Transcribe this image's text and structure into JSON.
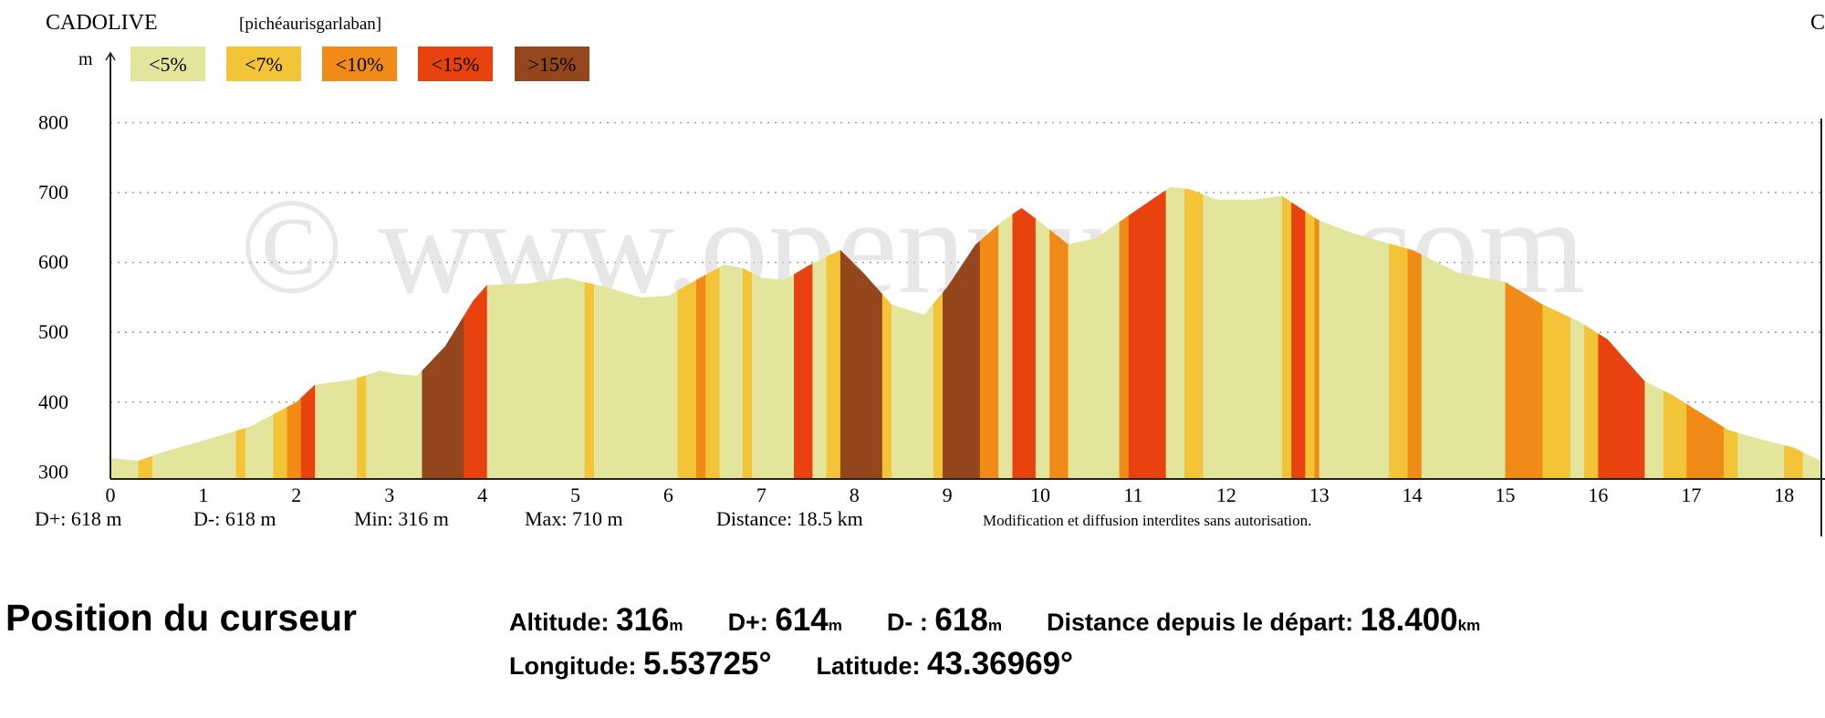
{
  "header": {
    "start_label": "CADOLIVE",
    "route_label": "[pichéaurisgarlaban]",
    "end_label": "C"
  },
  "legend": [
    {
      "label": "<5%",
      "color": "#E3E59C"
    },
    {
      "label": "<7%",
      "color": "#F3C338"
    },
    {
      "label": "<10%",
      "color": "#F18B18"
    },
    {
      "label": "<15%",
      "color": "#E8420F"
    },
    {
      "label": ">15%",
      "color": "#94461D"
    }
  ],
  "stats": {
    "dplus": "D+: 618 m",
    "dminus": "D-: 618 m",
    "min": "Min: 316 m",
    "max": "Max: 710 m",
    "distance": "Distance: 18.5 km",
    "notice": "Modification et diffusion interdites sans autorisation."
  },
  "watermark": "© www.openrunner.com",
  "chart_data": {
    "type": "area",
    "xlabel": "",
    "ylabel": "m",
    "xlim": [
      0,
      18.4
    ],
    "ylim": [
      290,
      900
    ],
    "x_ticks": [
      0,
      1,
      2,
      3,
      4,
      5,
      6,
      7,
      8,
      9,
      10,
      11,
      12,
      13,
      14,
      15,
      16,
      17,
      18
    ],
    "y_ticks": [
      300,
      400,
      500,
      600,
      700,
      800
    ],
    "grid": true,
    "profile": [
      [
        0,
        320
      ],
      [
        0.3,
        316
      ],
      [
        0.6,
        330
      ],
      [
        1.0,
        345
      ],
      [
        1.5,
        365
      ],
      [
        2.0,
        400
      ],
      [
        2.2,
        425
      ],
      [
        2.6,
        432
      ],
      [
        2.9,
        445
      ],
      [
        3.1,
        440
      ],
      [
        3.3,
        438
      ],
      [
        3.6,
        480
      ],
      [
        3.9,
        545
      ],
      [
        4.05,
        568
      ],
      [
        4.5,
        570
      ],
      [
        4.9,
        578
      ],
      [
        5.3,
        566
      ],
      [
        5.7,
        550
      ],
      [
        6.0,
        552
      ],
      [
        6.3,
        575
      ],
      [
        6.6,
        597
      ],
      [
        6.8,
        592
      ],
      [
        7.0,
        578
      ],
      [
        7.25,
        575
      ],
      [
        7.5,
        595
      ],
      [
        7.85,
        618
      ],
      [
        8.1,
        585
      ],
      [
        8.4,
        540
      ],
      [
        8.75,
        525
      ],
      [
        9.0,
        565
      ],
      [
        9.3,
        625
      ],
      [
        9.6,
        660
      ],
      [
        9.8,
        678
      ],
      [
        10.0,
        658
      ],
      [
        10.3,
        626
      ],
      [
        10.6,
        635
      ],
      [
        11.0,
        672
      ],
      [
        11.4,
        708
      ],
      [
        11.6,
        705
      ],
      [
        11.9,
        690
      ],
      [
        12.3,
        690
      ],
      [
        12.6,
        695
      ],
      [
        13.0,
        660
      ],
      [
        13.4,
        640
      ],
      [
        14.0,
        618
      ],
      [
        14.5,
        585
      ],
      [
        15.0,
        572
      ],
      [
        15.4,
        540
      ],
      [
        15.8,
        515
      ],
      [
        16.1,
        490
      ],
      [
        16.5,
        430
      ],
      [
        16.8,
        410
      ],
      [
        17.1,
        385
      ],
      [
        17.4,
        360
      ],
      [
        17.8,
        345
      ],
      [
        18.1,
        335
      ],
      [
        18.3,
        322
      ],
      [
        18.4,
        316
      ]
    ],
    "slope_bands": [
      [
        0,
        0.3,
        0
      ],
      [
        0.3,
        0.45,
        1
      ],
      [
        0.45,
        1.35,
        0
      ],
      [
        1.35,
        1.45,
        1
      ],
      [
        1.45,
        1.75,
        0
      ],
      [
        1.75,
        1.9,
        1
      ],
      [
        1.9,
        2.05,
        2
      ],
      [
        2.05,
        2.2,
        3
      ],
      [
        2.2,
        2.65,
        0
      ],
      [
        2.65,
        2.75,
        1
      ],
      [
        2.75,
        3.35,
        0
      ],
      [
        3.35,
        3.8,
        4
      ],
      [
        3.8,
        4.05,
        3
      ],
      [
        4.05,
        5.1,
        0
      ],
      [
        5.1,
        5.2,
        1
      ],
      [
        5.2,
        6.1,
        0
      ],
      [
        6.1,
        6.3,
        1
      ],
      [
        6.3,
        6.4,
        2
      ],
      [
        6.4,
        6.55,
        1
      ],
      [
        6.55,
        6.8,
        0
      ],
      [
        6.8,
        6.9,
        1
      ],
      [
        6.9,
        7.35,
        0
      ],
      [
        7.35,
        7.55,
        3
      ],
      [
        7.55,
        7.7,
        0
      ],
      [
        7.7,
        7.85,
        1
      ],
      [
        7.85,
        8.3,
        4
      ],
      [
        8.3,
        8.4,
        1
      ],
      [
        8.4,
        8.85,
        0
      ],
      [
        8.85,
        8.95,
        1
      ],
      [
        8.95,
        9.35,
        4
      ],
      [
        9.35,
        9.55,
        2
      ],
      [
        9.55,
        9.7,
        0
      ],
      [
        9.7,
        9.95,
        3
      ],
      [
        9.95,
        10.1,
        0
      ],
      [
        10.1,
        10.3,
        2
      ],
      [
        10.3,
        10.85,
        0
      ],
      [
        10.85,
        10.95,
        2
      ],
      [
        10.95,
        11.35,
        3
      ],
      [
        11.35,
        11.55,
        0
      ],
      [
        11.55,
        11.75,
        1
      ],
      [
        11.75,
        12.6,
        0
      ],
      [
        12.6,
        12.7,
        1
      ],
      [
        12.7,
        12.85,
        3
      ],
      [
        12.85,
        12.95,
        1
      ],
      [
        12.95,
        13.0,
        2
      ],
      [
        13.0,
        13.75,
        0
      ],
      [
        13.75,
        13.95,
        1
      ],
      [
        13.95,
        14.1,
        2
      ],
      [
        14.1,
        15.0,
        0
      ],
      [
        15.0,
        15.4,
        2
      ],
      [
        15.4,
        15.7,
        1
      ],
      [
        15.7,
        15.85,
        0
      ],
      [
        15.85,
        16.0,
        1
      ],
      [
        16.0,
        16.5,
        3
      ],
      [
        16.5,
        16.7,
        0
      ],
      [
        16.7,
        16.95,
        1
      ],
      [
        16.95,
        17.35,
        2
      ],
      [
        17.35,
        17.5,
        1
      ],
      [
        17.5,
        18.0,
        0
      ],
      [
        18.0,
        18.2,
        1
      ],
      [
        18.2,
        18.4,
        0
      ]
    ]
  },
  "cursor": {
    "title": "Position du curseur",
    "altitude_label": "Altitude:",
    "altitude_value": "316",
    "altitude_unit": "m",
    "dplus_label": "D+:",
    "dplus_value": "614",
    "dplus_unit": "m",
    "dminus_label": "D- :",
    "dminus_value": "618",
    "dminus_unit": "m",
    "distance_label": "Distance depuis le départ:",
    "distance_value": "18.400",
    "distance_unit": "km",
    "longitude_label": "Longitude:",
    "longitude_value": "5.53725°",
    "latitude_label": "Latitude:",
    "latitude_value": "43.36969°"
  }
}
